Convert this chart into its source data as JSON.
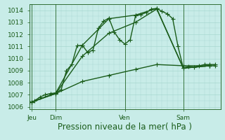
{
  "background_color": "#c8ece8",
  "grid_color": "#a8d8d0",
  "line_color": "#1a5c1a",
  "marker_color": "#1a5c1a",
  "xlabel": "Pression niveau de la mer( hPa )",
  "ylim": [
    1005.8,
    1014.5
  ],
  "yticks": [
    1006,
    1007,
    1008,
    1009,
    1010,
    1011,
    1012,
    1013,
    1014
  ],
  "xlim": [
    0,
    36
  ],
  "xtick_positions": [
    0.5,
    5,
    18,
    29
  ],
  "xtick_labels": [
    "Jeu",
    "Dim",
    "Ven",
    "Sam"
  ],
  "vline_positions": [
    0.5,
    5,
    18,
    29
  ],
  "series": [
    {
      "x": [
        0,
        0.5,
        1,
        2,
        3,
        4,
        5,
        6,
        7,
        8,
        9,
        10,
        11,
        12,
        13,
        14,
        15,
        16,
        17,
        18,
        19,
        20,
        21,
        22,
        23,
        24,
        25,
        26,
        27,
        28,
        29,
        30,
        31,
        32,
        33,
        34,
        35
      ],
      "y": [
        1006.4,
        1006.4,
        1006.5,
        1006.8,
        1007.0,
        1007.1,
        1007.15,
        1007.4,
        1009.0,
        1009.5,
        1011.05,
        1011.1,
        1010.5,
        1010.7,
        1012.5,
        1013.1,
        1013.35,
        1012.2,
        1011.55,
        1011.2,
        1011.55,
        1013.55,
        1013.65,
        1013.8,
        1014.1,
        1014.15,
        1013.9,
        1013.7,
        1013.3,
        1011.0,
        1009.2,
        1009.35,
        1009.3,
        1009.4,
        1009.5,
        1009.5,
        1009.5
      ]
    },
    {
      "x": [
        0.5,
        5,
        10,
        15,
        20,
        24,
        29,
        34
      ],
      "y": [
        1006.4,
        1007.15,
        1011.1,
        1013.3,
        1013.6,
        1014.15,
        1009.2,
        1009.4
      ]
    },
    {
      "x": [
        0.5,
        5,
        10,
        15,
        20,
        24,
        29,
        34
      ],
      "y": [
        1006.4,
        1007.1,
        1010.2,
        1012.1,
        1013.0,
        1014.1,
        1009.2,
        1009.4
      ]
    },
    {
      "x": [
        0.5,
        5,
        10,
        15,
        20,
        24,
        29,
        34,
        35
      ],
      "y": [
        1006.4,
        1007.1,
        1008.1,
        1008.6,
        1009.1,
        1009.5,
        1009.4,
        1009.4,
        1009.4
      ]
    }
  ],
  "xlabel_fontsize": 8.5,
  "tick_fontsize": 6.5,
  "marker_size": 2.5,
  "line_width": 1.0
}
